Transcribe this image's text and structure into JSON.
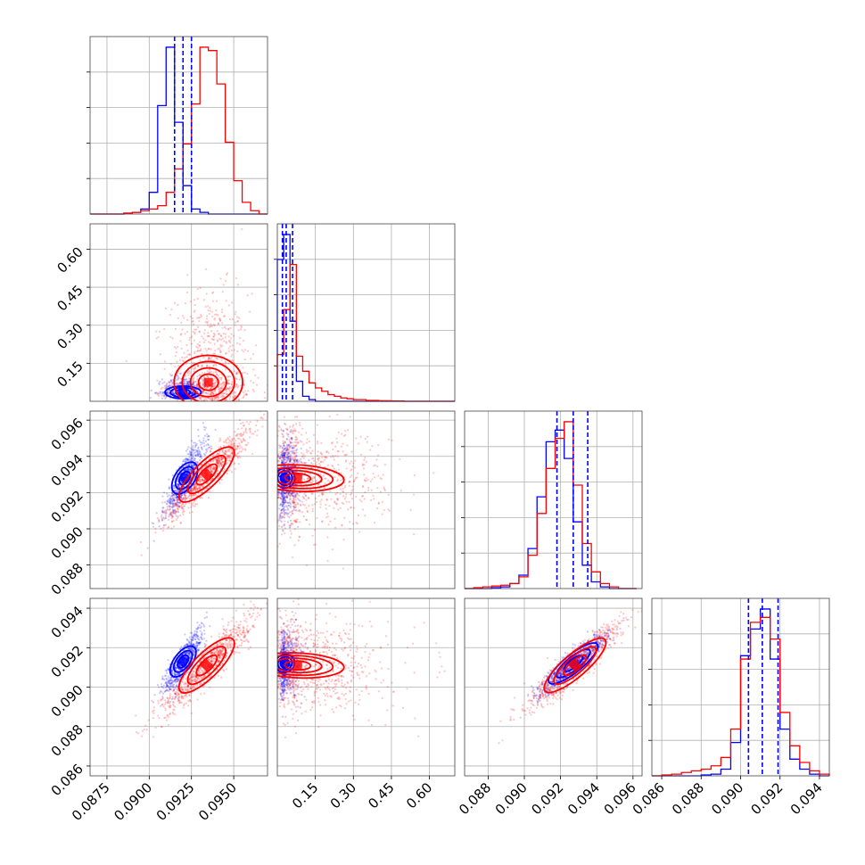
{
  "chart_data": {
    "type": "corner",
    "grid": true,
    "series": [
      {
        "name": "",
        "color": "#0000ff"
      },
      {
        "name": "",
        "color": "#ff0000"
      }
    ],
    "parameters": [
      {
        "range": [
          0.0865,
          0.097
        ],
        "ticks": [
          0.0875,
          0.09,
          0.0925,
          0.095
        ],
        "tick_labels": [
          "0.0875",
          "0.0900",
          "0.0925",
          "0.0950"
        ],
        "histogram": {
          "bins": [
            0.0865,
            0.087,
            0.0875,
            0.088,
            0.0885,
            0.089,
            0.0895,
            0.09,
            0.0905,
            0.091,
            0.0915,
            0.092,
            0.0925,
            0.093,
            0.0935,
            0.094,
            0.0945,
            0.095,
            0.0955,
            0.096,
            0.0965,
            0.097
          ],
          "blue": [
            0,
            0,
            0,
            0,
            0.005,
            0.01,
            0.03,
            0.13,
            0.65,
            1.0,
            0.55,
            0.17,
            0.03,
            0.01,
            0,
            0,
            0,
            0,
            0,
            0,
            0
          ],
          "red": [
            0,
            0,
            0,
            0,
            0.005,
            0.01,
            0.02,
            0.03,
            0.05,
            0.13,
            0.27,
            0.42,
            0.66,
            1.0,
            0.98,
            0.78,
            0.43,
            0.2,
            0.07,
            0.02,
            0
          ]
        },
        "quantiles": [
          0.0915,
          0.092,
          0.0925
        ]
      },
      {
        "range": [
          0.0,
          0.7
        ],
        "ticks": [
          0.15,
          0.3,
          0.45,
          0.6
        ],
        "tick_labels": [
          "0.15",
          "0.30",
          "0.45",
          "0.60"
        ],
        "histogram": {
          "bins": [
            0.0,
            0.025,
            0.05,
            0.075,
            0.1,
            0.125,
            0.15,
            0.175,
            0.2,
            0.225,
            0.25,
            0.275,
            0.3,
            0.325,
            0.35,
            0.4,
            0.45,
            0.5,
            0.55,
            0.6,
            0.65,
            0.7
          ],
          "blue": [
            0.85,
            1.0,
            0.48,
            0.12,
            0.03,
            0.01,
            0,
            0,
            0,
            0,
            0,
            0,
            0,
            0,
            0,
            0,
            0,
            0,
            0,
            0,
            0
          ],
          "red": [
            0.28,
            0.55,
            0.82,
            0.27,
            0.18,
            0.11,
            0.08,
            0.06,
            0.04,
            0.03,
            0.02,
            0.015,
            0.01,
            0.01,
            0.005,
            0.003,
            0.002,
            0,
            0,
            0,
            0
          ]
        },
        "quantiles": [
          0.02,
          0.035,
          0.06
        ]
      },
      {
        "range": [
          0.0867,
          0.0965
        ],
        "ticks": [
          0.088,
          0.09,
          0.092,
          0.094,
          0.096
        ],
        "tick_labels": [
          "0.088",
          "0.090",
          "0.092",
          "0.094",
          "0.096"
        ],
        "histogram": {
          "bins": [
            0.0867,
            0.0872,
            0.0877,
            0.0882,
            0.0887,
            0.0892,
            0.0897,
            0.0902,
            0.0907,
            0.0912,
            0.0917,
            0.0922,
            0.0927,
            0.0932,
            0.0937,
            0.0942,
            0.0947,
            0.0952,
            0.0957,
            0.0962
          ],
          "blue": [
            0,
            0,
            0,
            0.005,
            0.01,
            0.03,
            0.08,
            0.24,
            0.55,
            0.88,
            0.95,
            0.78,
            0.4,
            0.14,
            0.04,
            0.01,
            0,
            0,
            0
          ],
          "red": [
            0,
            0.005,
            0.01,
            0.015,
            0.02,
            0.03,
            0.07,
            0.2,
            0.45,
            0.72,
            0.9,
            1.0,
            0.62,
            0.27,
            0.1,
            0.03,
            0.01,
            0,
            0
          ]
        },
        "quantiles": [
          0.0918,
          0.0927,
          0.0935
        ]
      },
      {
        "range": [
          0.0855,
          0.0945
        ],
        "ticks": [
          0.086,
          0.088,
          0.09,
          0.092,
          0.094
        ],
        "tick_labels": [
          "0.086",
          "0.088",
          "0.090",
          "0.092",
          "0.094"
        ],
        "histogram": {
          "bins": [
            0.0855,
            0.086,
            0.0865,
            0.087,
            0.0875,
            0.088,
            0.0885,
            0.089,
            0.0895,
            0.09,
            0.0905,
            0.091,
            0.0915,
            0.092,
            0.0925,
            0.093,
            0.0935,
            0.094,
            0.0945
          ],
          "blue": [
            0,
            0,
            0,
            0,
            0,
            0.005,
            0.01,
            0.04,
            0.2,
            0.72,
            0.88,
            1.0,
            0.7,
            0.28,
            0.1,
            0.04,
            0.01,
            0
          ],
          "red": [
            0,
            0.005,
            0.01,
            0.02,
            0.03,
            0.04,
            0.06,
            0.11,
            0.28,
            0.7,
            0.92,
            0.95,
            0.82,
            0.38,
            0.18,
            0.08,
            0.03,
            0.01
          ]
        },
        "quantiles": [
          0.0904,
          0.0911,
          0.0919
        ]
      }
    ],
    "pairs": [
      {
        "row": 1,
        "col": 0,
        "blue": {
          "mean": [
            0.092,
            0.035
          ],
          "sd": [
            0.0006,
            0.02
          ],
          "corr": 0.2,
          "n": 420
        },
        "red": {
          "mean": [
            0.0935,
            0.075
          ],
          "sd": [
            0.0012,
            0.11
          ],
          "corr": 0.25,
          "n": 900
        },
        "blue_levels": [
          0.035,
          0.055,
          0.075
        ],
        "red_levels": [
          0.03,
          0.08,
          0.12,
          0.17
        ]
      },
      {
        "row": 2,
        "col": 0,
        "blue": {
          "mean": [
            0.0921,
            0.0928
          ],
          "sd": [
            0.0006,
            0.001
          ],
          "corr": 0.85,
          "n": 700
        },
        "red": {
          "mean": [
            0.0934,
            0.093
          ],
          "sd": [
            0.0013,
            0.0013
          ],
          "corr": 0.93,
          "n": 900
        },
        "blue_levels": [
          0.0008,
          0.0014,
          0.0019
        ],
        "red_levels": [
          0.0006,
          0.0012,
          0.0018
        ]
      },
      {
        "row": 2,
        "col": 1,
        "blue": {
          "mean": [
            0.03,
            0.0928
          ],
          "sd": [
            0.02,
            0.001
          ],
          "corr": 0.15,
          "n": 600
        },
        "red": {
          "mean": [
            0.08,
            0.0928
          ],
          "sd": [
            0.11,
            0.0014
          ],
          "corr": -0.05,
          "n": 900
        },
        "blue_levels": [
          0.004,
          0.006,
          0.009
        ],
        "red_levels": [
          0.003,
          0.006,
          0.009,
          0.012
        ]
      },
      {
        "row": 3,
        "col": 0,
        "blue": {
          "mean": [
            0.092,
            0.0913
          ],
          "sd": [
            0.0006,
            0.0008
          ],
          "corr": 0.85,
          "n": 700
        },
        "red": {
          "mean": [
            0.0934,
            0.0911
          ],
          "sd": [
            0.0013,
            0.0012
          ],
          "corr": 0.92,
          "n": 900
        },
        "blue_levels": [
          0.0007,
          0.0012,
          0.0017
        ],
        "red_levels": [
          0.0006,
          0.0011,
          0.0016
        ]
      },
      {
        "row": 3,
        "col": 1,
        "blue": {
          "mean": [
            0.03,
            0.0912
          ],
          "sd": [
            0.02,
            0.0008
          ],
          "corr": 0.15,
          "n": 600
        },
        "red": {
          "mean": [
            0.08,
            0.0911
          ],
          "sd": [
            0.11,
            0.0012
          ],
          "corr": -0.05,
          "n": 900
        },
        "blue_levels": [
          0.004,
          0.006,
          0.009
        ],
        "red_levels": [
          0.003,
          0.006,
          0.009,
          0.012
        ]
      },
      {
        "row": 3,
        "col": 2,
        "blue": {
          "mean": [
            0.0927,
            0.0912
          ],
          "sd": [
            0.001,
            0.0008
          ],
          "corr": 0.92,
          "n": 600
        },
        "red": {
          "mean": [
            0.0928,
            0.0911
          ],
          "sd": [
            0.0013,
            0.0011
          ],
          "corr": 0.93,
          "n": 900
        },
        "blue_levels": [
          0.0004,
          0.0007,
          0.001
        ],
        "red_levels": [
          0.0004,
          0.0007,
          0.001
        ]
      }
    ]
  }
}
